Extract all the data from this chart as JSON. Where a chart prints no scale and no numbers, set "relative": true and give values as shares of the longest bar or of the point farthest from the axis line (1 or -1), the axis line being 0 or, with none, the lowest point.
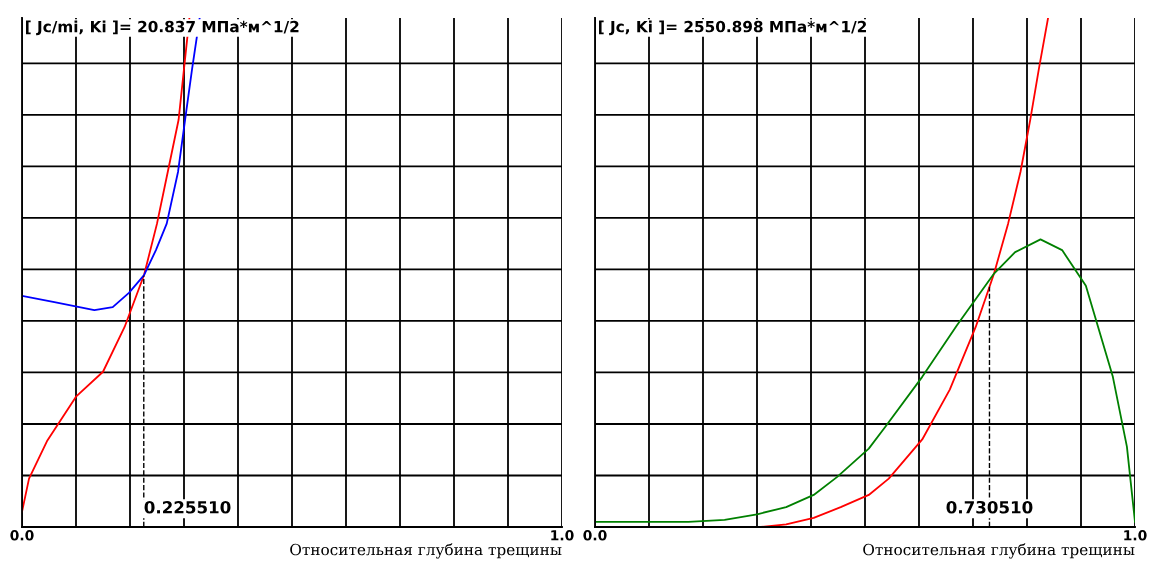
{
  "chart_data": [
    {
      "type": "line",
      "relative": true,
      "title": "[ Jc/mi, Ki ]= 20.837 МПа*м^1/2",
      "xlabel": "Относительная глубина трещины",
      "xlim": [
        0,
        1
      ],
      "xticks": [
        {
          "value": 0,
          "label": "0.0"
        },
        {
          "value": 0.1,
          "label": null
        },
        {
          "value": 0.2,
          "label": null
        },
        {
          "value": 0.3,
          "label": null
        },
        {
          "value": 0.4,
          "label": null
        },
        {
          "value": 0.5,
          "label": null
        },
        {
          "value": 0.6,
          "label": null
        },
        {
          "value": 0.7,
          "label": null
        },
        {
          "value": 0.8,
          "label": null
        },
        {
          "value": 0.9,
          "label": null
        },
        {
          "value": 1,
          "label": "1.0"
        }
      ],
      "grid": true,
      "line_style": "solid",
      "marker": "none",
      "ref_lines": [
        {
          "axis": "x",
          "value": 0.22551,
          "label": "0.225510",
          "line_style": "dashed",
          "color": "#000000"
        }
      ],
      "series": [
        {
          "color": "#ff0000",
          "x": [
            0,
            0.013,
            0.047,
            0.1,
            0.15,
            0.19,
            0.226,
            0.25,
            0.27,
            0.29,
            0.3,
            0.31
          ],
          "values": [
            0.03,
            0.095,
            0.17,
            0.256,
            0.305,
            0.393,
            0.495,
            0.596,
            0.698,
            0.8,
            0.9,
            1.0
          ]
        },
        {
          "color": "#0000ff",
          "x": [
            0,
            0.06,
            0.134,
            0.168,
            0.198,
            0.226,
            0.248,
            0.268,
            0.289,
            0.302,
            0.315,
            0.329
          ],
          "values": [
            0.454,
            0.442,
            0.426,
            0.432,
            0.46,
            0.495,
            0.544,
            0.596,
            0.698,
            0.8,
            0.9,
            1.0
          ]
        }
      ]
    },
    {
      "type": "line",
      "relative": true,
      "title": "[ Jc, Ki ]= 2550.898 МПа*м^1/2",
      "xlabel": "Относительная глубина трещины",
      "xlim": [
        0,
        1
      ],
      "xticks": [
        {
          "value": 0,
          "label": "0.0"
        },
        {
          "value": 0.1,
          "label": null
        },
        {
          "value": 0.2,
          "label": null
        },
        {
          "value": 0.3,
          "label": null
        },
        {
          "value": 0.4,
          "label": null
        },
        {
          "value": 0.5,
          "label": null
        },
        {
          "value": 0.6,
          "label": null
        },
        {
          "value": 0.7,
          "label": null
        },
        {
          "value": 0.8,
          "label": null
        },
        {
          "value": 0.9,
          "label": null
        },
        {
          "value": 1,
          "label": "1.0"
        }
      ],
      "grid": true,
      "line_style": "solid",
      "marker": "none",
      "ref_lines": [
        {
          "axis": "x",
          "value": 0.73051,
          "label": "0.730510",
          "line_style": "dashed",
          "color": "#000000"
        }
      ],
      "series": [
        {
          "color": "#ff0000",
          "x": [
            0.307,
            0.354,
            0.405,
            0.455,
            0.507,
            0.544,
            0.606,
            0.657,
            0.705,
            0.739,
            0.765,
            0.788,
            0.806,
            0.822,
            0.839
          ],
          "values": [
            0,
            0.005,
            0.018,
            0.039,
            0.063,
            0.095,
            0.172,
            0.27,
            0.393,
            0.498,
            0.596,
            0.698,
            0.8,
            0.9,
            1.0
          ]
        },
        {
          "color": "#008000",
          "x": [
            0,
            0.086,
            0.173,
            0.24,
            0.3,
            0.354,
            0.405,
            0.448,
            0.507,
            0.537,
            0.606,
            0.67,
            0.739,
            0.778,
            0.825,
            0.865,
            0.909,
            0.959,
            0.985,
            1.0
          ],
          "values": [
            0.01,
            0.01,
            0.01,
            0.014,
            0.025,
            0.039,
            0.063,
            0.098,
            0.154,
            0.196,
            0.295,
            0.396,
            0.498,
            0.54,
            0.565,
            0.544,
            0.474,
            0.295,
            0.158,
            0.01
          ]
        }
      ]
    }
  ]
}
